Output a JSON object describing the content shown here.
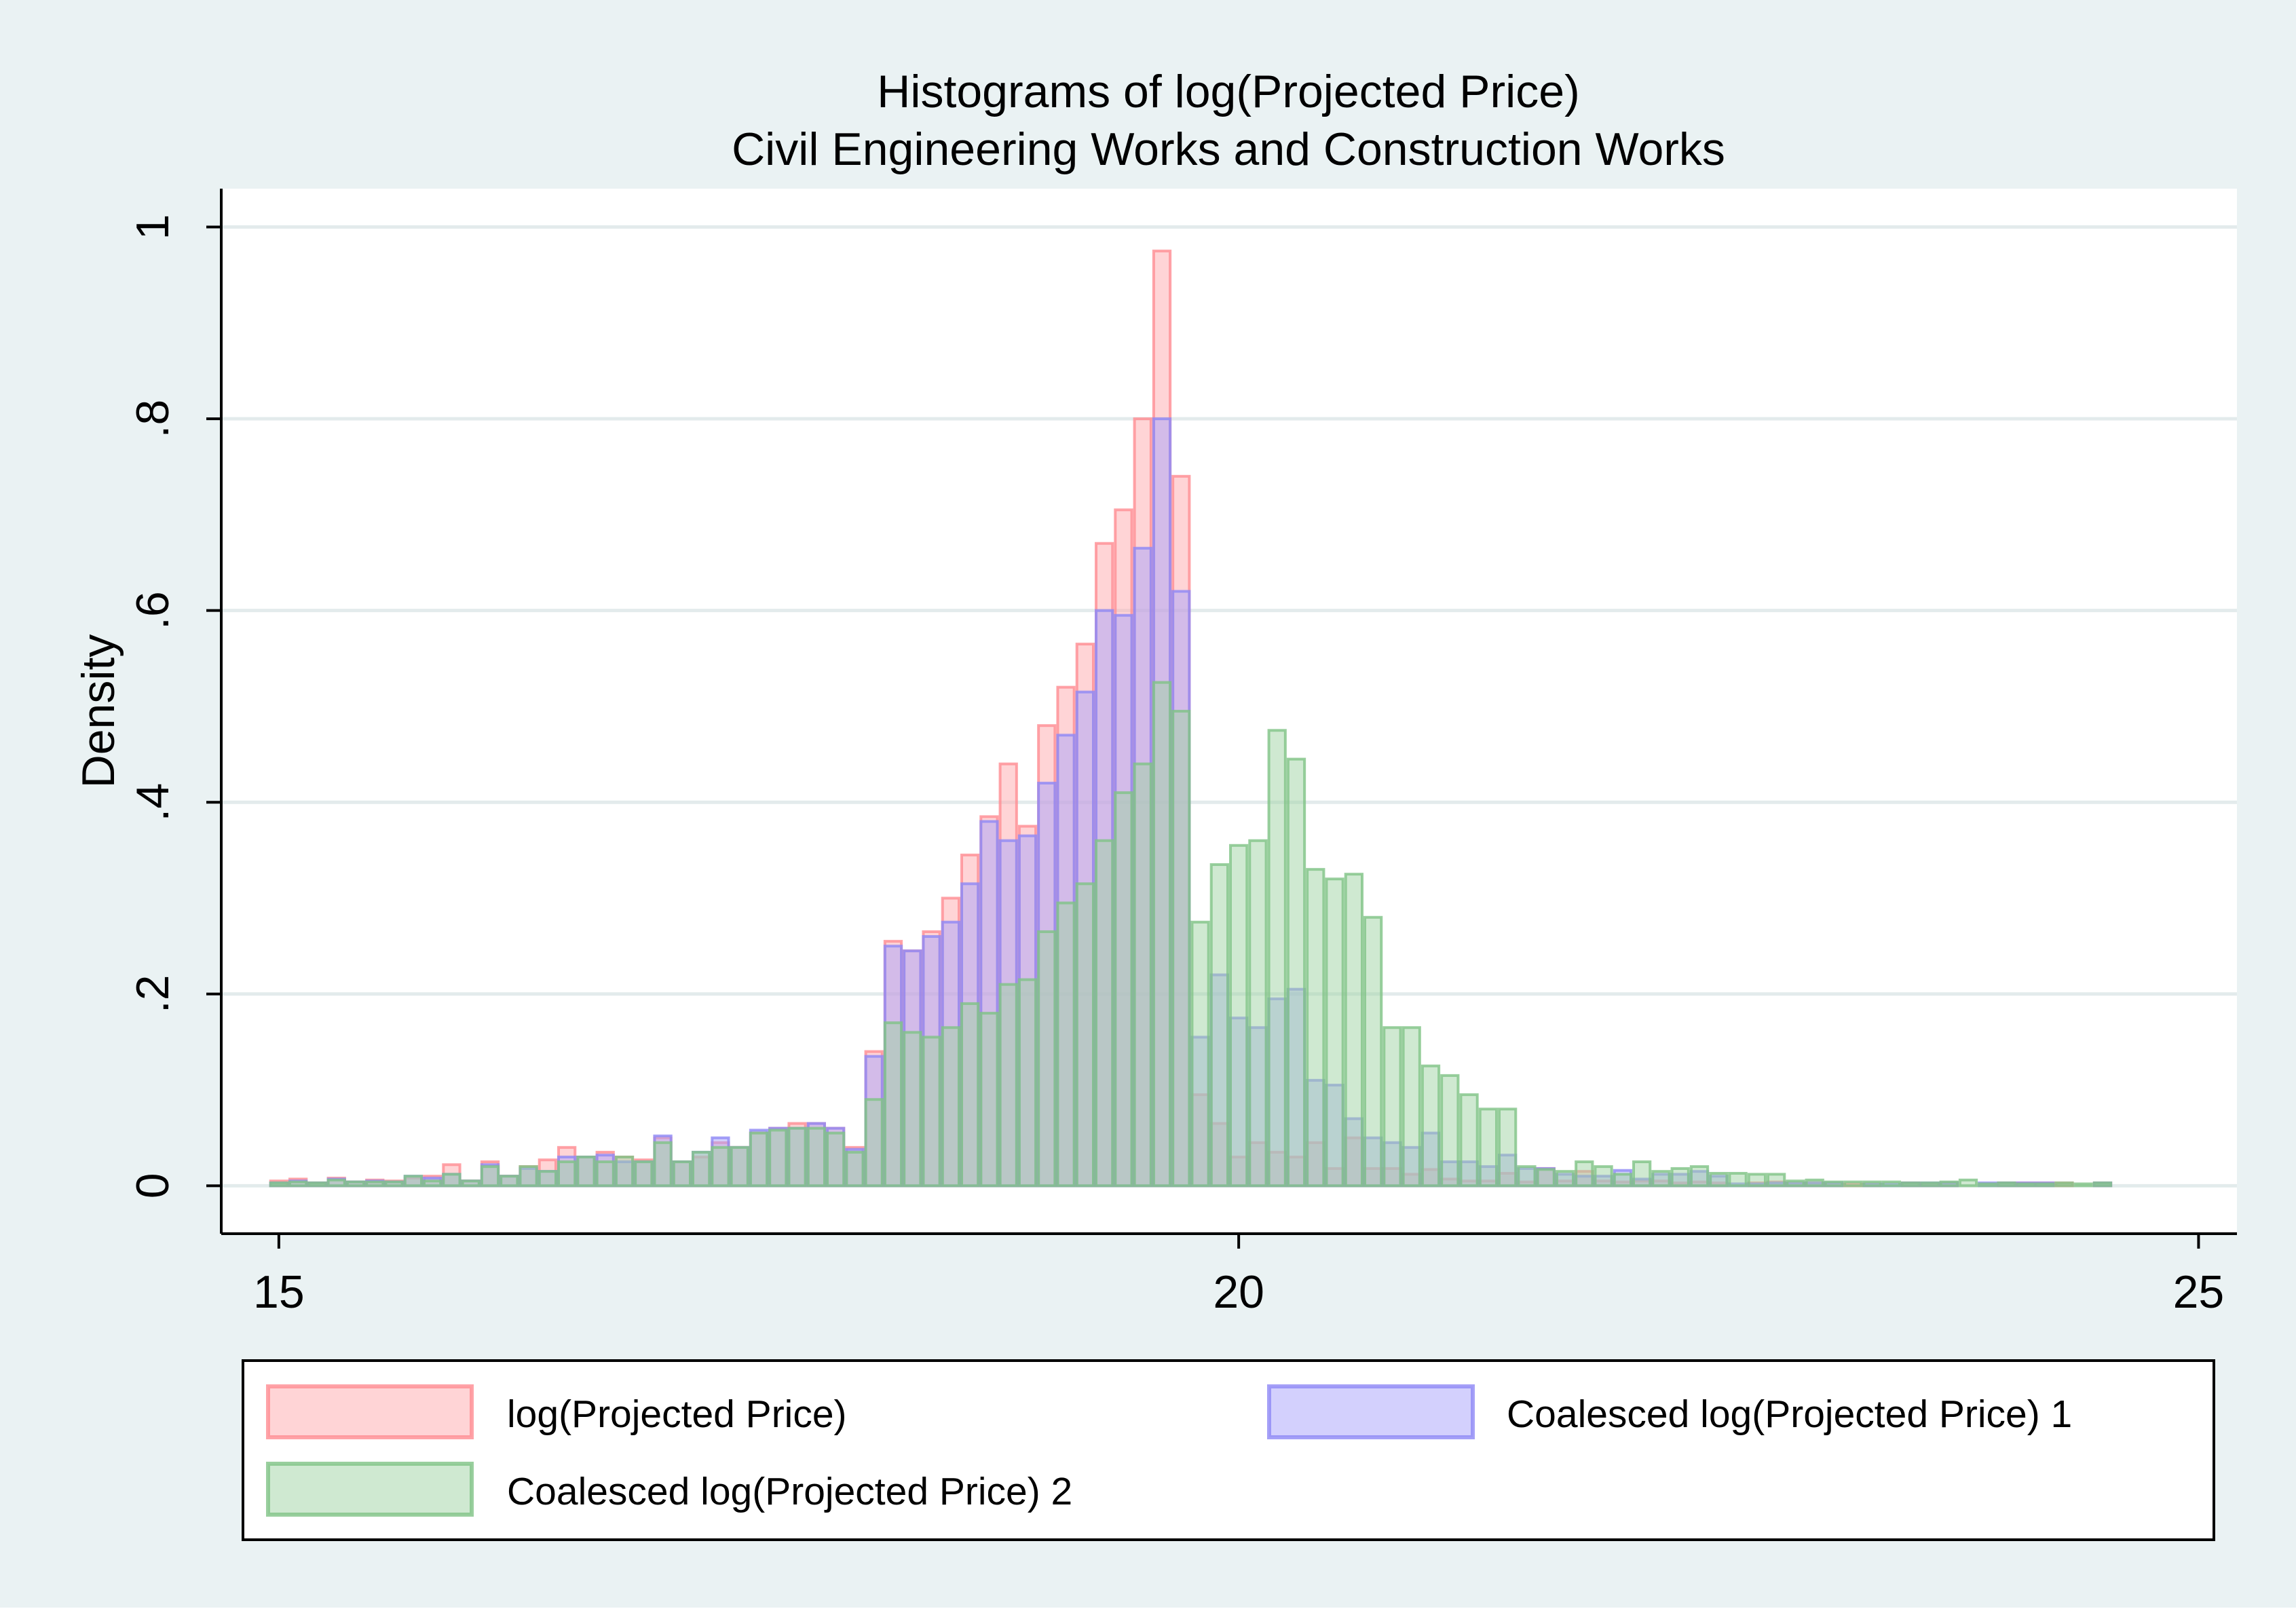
{
  "chart_data": {
    "type": "bar",
    "title": "Histograms of log(Projected Price)",
    "subtitle": "Civil Engineering Works and Construction Works",
    "xlabel": "",
    "ylabel": "Density",
    "xlim": [
      14.7,
      25.2
    ],
    "ylim": [
      -0.05,
      1.04
    ],
    "x_ticks": [
      15,
      20,
      25
    ],
    "x_tick_labels": [
      "15",
      "20",
      "25"
    ],
    "y_ticks": [
      0,
      0.2,
      0.4,
      0.6,
      0.8,
      1
    ],
    "y_tick_labels": [
      "0",
      ".2",
      ".4",
      ".6",
      ".8",
      "1"
    ],
    "grid": true,
    "legend_position": "bottom",
    "colors": {
      "outer_background": "#eaf2f3",
      "plot_background": "#ffffff",
      "grid": "#e3ebec",
      "s1_fill": "#ffa9ad",
      "s1_stroke": "#ff8c92",
      "s2_fill": "#a8a2fb",
      "s2_stroke": "#8f88f5",
      "s3_fill": "#9fd3a3",
      "s3_stroke": "#7fc386"
    },
    "bin_width": 0.1,
    "series": [
      {
        "name": "log(Projected Price)",
        "start": 14.95,
        "values": [
          0.005,
          0.007,
          0.003,
          0.008,
          0.004,
          0.006,
          0.005,
          0.008,
          0.01,
          0.022,
          0.005,
          0.025,
          0.01,
          0.02,
          0.027,
          0.04,
          0.03,
          0.035,
          0.03,
          0.027,
          0.05,
          0.025,
          0.03,
          0.045,
          0.04,
          0.055,
          0.06,
          0.065,
          0.065,
          0.06,
          0.04,
          0.14,
          0.255,
          0.245,
          0.265,
          0.3,
          0.345,
          0.385,
          0.44,
          0.375,
          0.48,
          0.52,
          0.565,
          0.67,
          0.705,
          0.8,
          0.975,
          0.74,
          0.095,
          0.065,
          0.03,
          0.045,
          0.035,
          0.03,
          0.045,
          0.018,
          0.05,
          0.018,
          0.018,
          0.012,
          0.017,
          0.007,
          0.005,
          0.005,
          0.013,
          0.004,
          0.018,
          0.005,
          0.015,
          0.005,
          0.004,
          0.005,
          0.005,
          0.003,
          0.004,
          0.003,
          0.0,
          0.003,
          0.004,
          0.003,
          0.003,
          0.002,
          0.002,
          0.002,
          0.0,
          0.003,
          0.002,
          0.003,
          0.0,
          0.0,
          0.003,
          0.003,
          0.003,
          0.003,
          0.0,
          0.003
        ]
      },
      {
        "name": "Coalesced log(Projected Price) 1",
        "start": 14.95,
        "values": [
          0.003,
          0.005,
          0.003,
          0.007,
          0.004,
          0.005,
          0.004,
          0.01,
          0.008,
          0.012,
          0.005,
          0.022,
          0.01,
          0.018,
          0.015,
          0.03,
          0.03,
          0.032,
          0.025,
          0.025,
          0.052,
          0.025,
          0.035,
          0.05,
          0.04,
          0.058,
          0.06,
          0.06,
          0.065,
          0.06,
          0.038,
          0.135,
          0.25,
          0.245,
          0.26,
          0.275,
          0.315,
          0.38,
          0.36,
          0.365,
          0.42,
          0.47,
          0.515,
          0.6,
          0.595,
          0.665,
          0.8,
          0.62,
          0.155,
          0.22,
          0.175,
          0.165,
          0.195,
          0.205,
          0.11,
          0.105,
          0.07,
          0.05,
          0.045,
          0.04,
          0.055,
          0.025,
          0.025,
          0.02,
          0.032,
          0.018,
          0.018,
          0.012,
          0.01,
          0.01,
          0.016,
          0.007,
          0.012,
          0.012,
          0.015,
          0.01,
          0.002,
          0.002,
          0.003,
          0.003,
          0.003,
          0.003,
          0.0,
          0.002,
          0.002,
          0.003,
          0.003,
          0.003,
          0.0,
          0.003,
          0.003,
          0.003,
          0.003,
          0.0,
          0.0,
          0.003
        ]
      },
      {
        "name": "Coalesced log(Projected Price) 2",
        "start": 14.95,
        "values": [
          0.003,
          0.004,
          0.003,
          0.006,
          0.004,
          0.004,
          0.004,
          0.01,
          0.005,
          0.012,
          0.005,
          0.02,
          0.01,
          0.02,
          0.015,
          0.025,
          0.03,
          0.025,
          0.03,
          0.025,
          0.045,
          0.025,
          0.035,
          0.04,
          0.04,
          0.055,
          0.058,
          0.06,
          0.06,
          0.055,
          0.035,
          0.09,
          0.17,
          0.16,
          0.155,
          0.165,
          0.19,
          0.18,
          0.21,
          0.215,
          0.265,
          0.295,
          0.315,
          0.36,
          0.41,
          0.44,
          0.525,
          0.495,
          0.275,
          0.335,
          0.355,
          0.36,
          0.475,
          0.445,
          0.33,
          0.32,
          0.325,
          0.28,
          0.165,
          0.165,
          0.125,
          0.115,
          0.095,
          0.08,
          0.08,
          0.02,
          0.017,
          0.015,
          0.025,
          0.02,
          0.012,
          0.025,
          0.015,
          0.018,
          0.02,
          0.013,
          0.013,
          0.012,
          0.012,
          0.005,
          0.006,
          0.004,
          0.004,
          0.004,
          0.004,
          0.003,
          0.003,
          0.004,
          0.006,
          0.002,
          0.003,
          0.002,
          0.002,
          0.003,
          0.002,
          0.003
        ]
      }
    ]
  },
  "legend": {
    "items": [
      {
        "label": "log(Projected Price)"
      },
      {
        "label": "Coalesced log(Projected Price) 1"
      },
      {
        "label": "Coalesced log(Projected Price) 2"
      }
    ]
  }
}
